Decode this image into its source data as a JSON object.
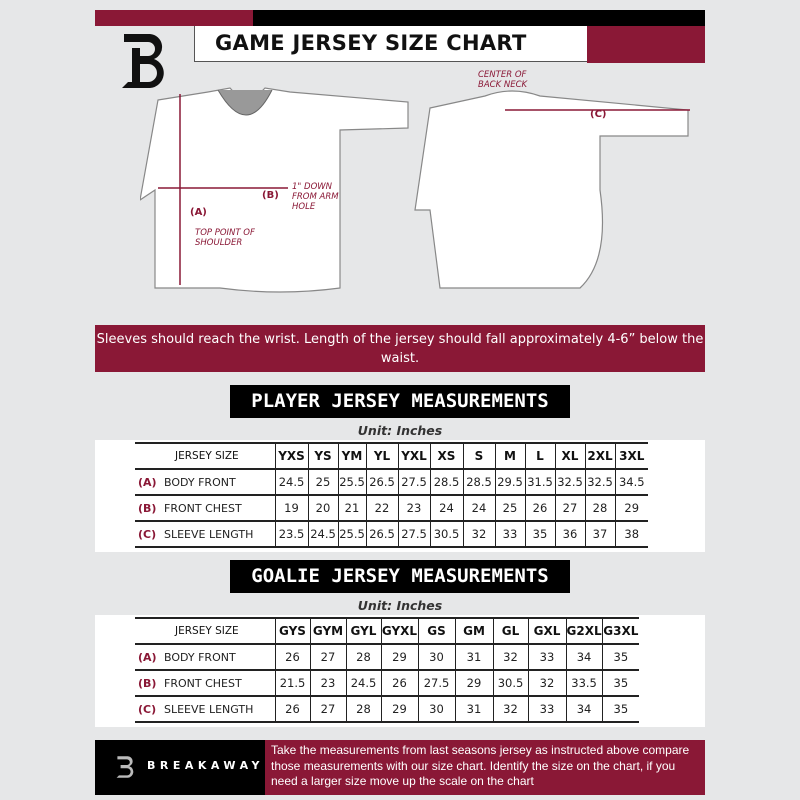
{
  "header": {
    "title": "GAME JERSEY SIZE CHART"
  },
  "colors": {
    "brand": "#8a1836",
    "dark": "#000000",
    "background": "#e6e7e8"
  },
  "diagram": {
    "labels": {
      "a": "(A)",
      "b": "(B)",
      "c": "(C)",
      "top_point": "TOP POINT OF SHOULDER",
      "one_inch_down": "1\" DOWN FROM ARM HOLE",
      "center_back_neck": "CENTER OF BACK NECK"
    }
  },
  "banner": {
    "text": "Sleeves should reach the wrist. Length of the jersey should fall approximately 4-6” below the waist."
  },
  "player": {
    "title": "PLAYER JERSEY MEASUREMENTS",
    "unit": "Unit: Inches",
    "header_label": "JERSEY SIZE",
    "sizes": [
      "YXS",
      "YS",
      "YM",
      "YL",
      "YXL",
      "XS",
      "S",
      "M",
      "L",
      "XL",
      "2XL",
      "3XL"
    ],
    "rows": [
      {
        "letter": "(A)",
        "label": "BODY FRONT",
        "values": [
          "24.5",
          "25",
          "25.5",
          "26.5",
          "27.5",
          "28.5",
          "28.5",
          "29.5",
          "31.5",
          "32.5",
          "32.5",
          "34.5"
        ]
      },
      {
        "letter": "(B)",
        "label": "FRONT CHEST",
        "values": [
          "19",
          "20",
          "21",
          "22",
          "23",
          "24",
          "24",
          "25",
          "26",
          "27",
          "28",
          "29"
        ]
      },
      {
        "letter": "(C)",
        "label": "SLEEVE LENGTH",
        "values": [
          "23.5",
          "24.5",
          "25.5",
          "26.5",
          "27.5",
          "30.5",
          "32",
          "33",
          "35",
          "36",
          "37",
          "38"
        ]
      }
    ]
  },
  "goalie": {
    "title": "GOALIE JERSEY MEASUREMENTS",
    "unit": "Unit: Inches",
    "header_label": "JERSEY SIZE",
    "sizes": [
      "GYS",
      "GYM",
      "GYL",
      "GYXL",
      "GS",
      "GM",
      "GL",
      "GXL",
      "G2XL",
      "G3XL"
    ],
    "rows": [
      {
        "letter": "(A)",
        "label": "BODY FRONT",
        "values": [
          "26",
          "27",
          "28",
          "29",
          "30",
          "31",
          "32",
          "33",
          "34",
          "35"
        ]
      },
      {
        "letter": "(B)",
        "label": "FRONT CHEST",
        "values": [
          "21.5",
          "23",
          "24.5",
          "26",
          "27.5",
          "29",
          "30.5",
          "32",
          "33.5",
          "35"
        ]
      },
      {
        "letter": "(C)",
        "label": "SLEEVE LENGTH",
        "values": [
          "26",
          "27",
          "28",
          "29",
          "30",
          "31",
          "32",
          "33",
          "34",
          "35"
        ]
      }
    ]
  },
  "footer": {
    "brand": "BREAKAWAY",
    "text": "Take the measurements from last seasons jersey as instructed above compare those measurements  with our size chart. Identify the size on the chart, if you need a larger size move up the scale on the chart"
  }
}
